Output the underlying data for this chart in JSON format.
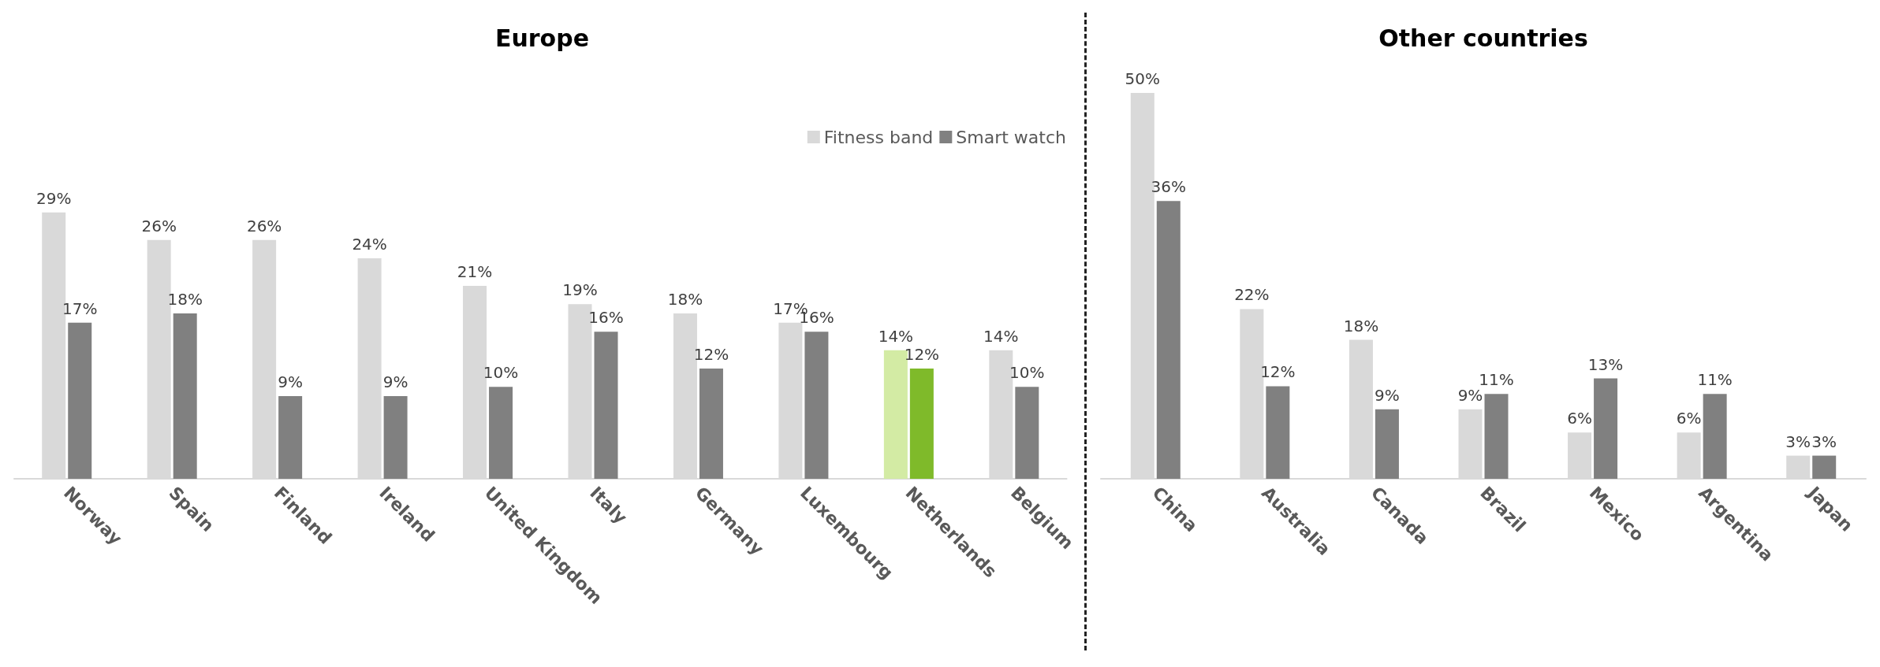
{
  "chart_data": [
    {
      "type": "bar",
      "title": "Europe",
      "categories": [
        "Norway",
        "Spain",
        "Finland",
        "Ireland",
        "United Kingdom",
        "Italy",
        "Germany",
        "Luxembourg",
        "Netherlands",
        "Belgium"
      ],
      "legend": "top right",
      "series": [
        {
          "name": "Fitness band",
          "color": "#d9d9d9",
          "colors": [
            "#d9d9d9",
            "#d9d9d9",
            "#d9d9d9",
            "#d9d9d9",
            "#d9d9d9",
            "#d9d9d9",
            "#d9d9d9",
            "#d9d9d9",
            "#d3eba4",
            "#d9d9d9"
          ],
          "values": [
            29,
            26,
            26,
            24,
            21,
            19,
            18,
            17,
            14,
            14
          ],
          "value_labels": [
            "29%",
            "26%",
            "26%",
            "24%",
            "21%",
            "19%",
            "18%",
            "17%",
            "14%",
            "14%"
          ]
        },
        {
          "name": "Smart watch",
          "color": "#808080",
          "colors": [
            "#808080",
            "#808080",
            "#808080",
            "#808080",
            "#808080",
            "#808080",
            "#808080",
            "#808080",
            "#7fba2a",
            "#808080"
          ],
          "values": [
            17,
            18,
            9,
            9,
            10,
            16,
            12,
            16,
            12,
            10
          ],
          "value_labels": [
            "17%",
            "18%",
            "9%",
            "9%",
            "10%",
            "16%",
            "12%",
            "16%",
            "12%",
            "10%"
          ]
        }
      ]
    },
    {
      "type": "bar",
      "title": "Other countries",
      "categories": [
        "China",
        "Australia",
        "Canada",
        "Brazil",
        "Mexico",
        "Argentina",
        "Japan"
      ],
      "legend": false,
      "series": [
        {
          "color": "#d9d9d9",
          "values": [
            50,
            22,
            18,
            9,
            6,
            6,
            3
          ],
          "value_labels": [
            "50%",
            "22%",
            "18%",
            "9%",
            "6%",
            "6%",
            "3%"
          ]
        },
        {
          "color": "#808080",
          "values": [
            36,
            12,
            9,
            11,
            13,
            11,
            3
          ],
          "value_labels": [
            "36%",
            "12%",
            "9%",
            "11%",
            "13%",
            "11%",
            "3%"
          ]
        }
      ]
    }
  ]
}
